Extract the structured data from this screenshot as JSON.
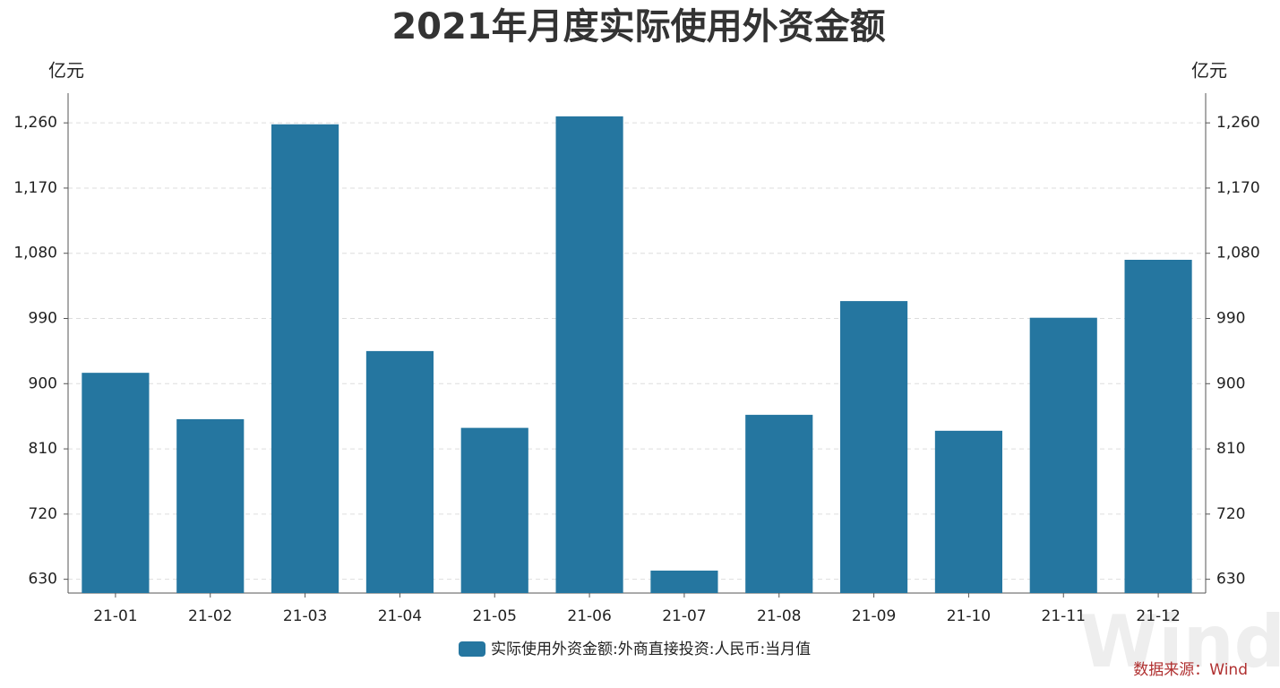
{
  "chart_data": {
    "type": "bar",
    "title": "2021年月度实际使用外资金额",
    "y_label": "亿元",
    "y2_label": "亿元",
    "categories": [
      "21-01",
      "21-02",
      "21-03",
      "21-04",
      "21-05",
      "21-06",
      "21-07",
      "21-08",
      "21-09",
      "21-10",
      "21-11",
      "21-12"
    ],
    "series": [
      {
        "name": "实际使用外资金额:外商直接投资:人民币:当月值",
        "color": "#2576a0",
        "values": [
          915,
          851,
          1258,
          945,
          839,
          1269,
          642,
          857,
          1014,
          835,
          991,
          1071
        ]
      }
    ],
    "ylim": [
      611,
      1301
    ],
    "yticks": [
      630,
      720,
      810,
      900,
      990,
      {
        "value": 1080,
        "label": "1,080"
      },
      {
        "value": 1170,
        "label": "1,170"
      },
      {
        "value": 1260,
        "label": "1,260"
      }
    ],
    "y2lim": [
      611,
      1301
    ],
    "y2ticks": [
      630,
      720,
      810,
      900,
      990,
      {
        "value": 1080,
        "label": "1,080"
      },
      {
        "value": 1170,
        "label": "1,170"
      },
      {
        "value": 1260,
        "label": "1,260"
      }
    ],
    "grid": true,
    "legend_position": "bottom",
    "source": "数据来源：Wind",
    "watermark": "Wind"
  }
}
